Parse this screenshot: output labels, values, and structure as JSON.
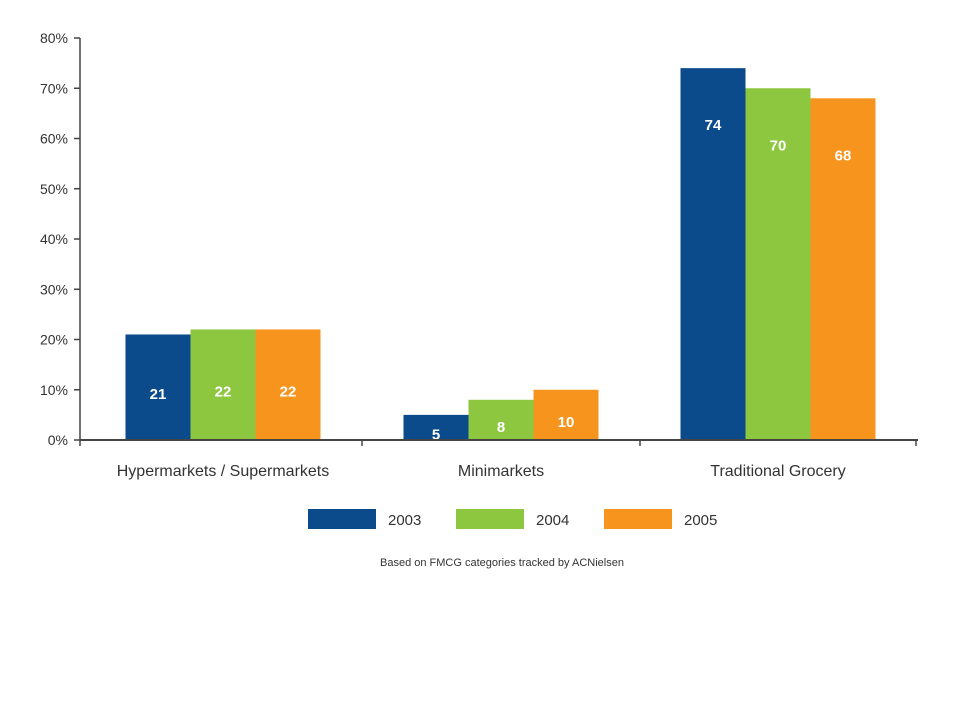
{
  "chart_data": {
    "type": "bar",
    "categories": [
      "Hypermarkets / Supermarkets",
      "Minimarkets",
      "Traditional Grocery"
    ],
    "series": [
      {
        "name": "2003",
        "values": [
          21,
          5,
          74
        ],
        "labels": [
          "21",
          "5",
          "74"
        ],
        "color": "#0b4a8b"
      },
      {
        "name": "2004",
        "values": [
          22,
          8,
          70
        ],
        "labels": [
          "22",
          "8",
          "70"
        ],
        "color": "#8dc63f"
      },
      {
        "name": "2005",
        "values": [
          22,
          10,
          68
        ],
        "labels": [
          "22",
          "10",
          "68"
        ],
        "color": "#f7941d"
      }
    ],
    "ylim": [
      0,
      80
    ],
    "yticks": [
      0,
      10,
      20,
      30,
      40,
      50,
      60,
      70,
      80
    ],
    "ytick_labels": [
      "0%",
      "10%",
      "20%",
      "30%",
      "40%",
      "50%",
      "60%",
      "70%",
      "80%"
    ],
    "grid": false,
    "legend_position": "bottom",
    "footnote": "Based on FMCG categories tracked by ACNielsen"
  }
}
